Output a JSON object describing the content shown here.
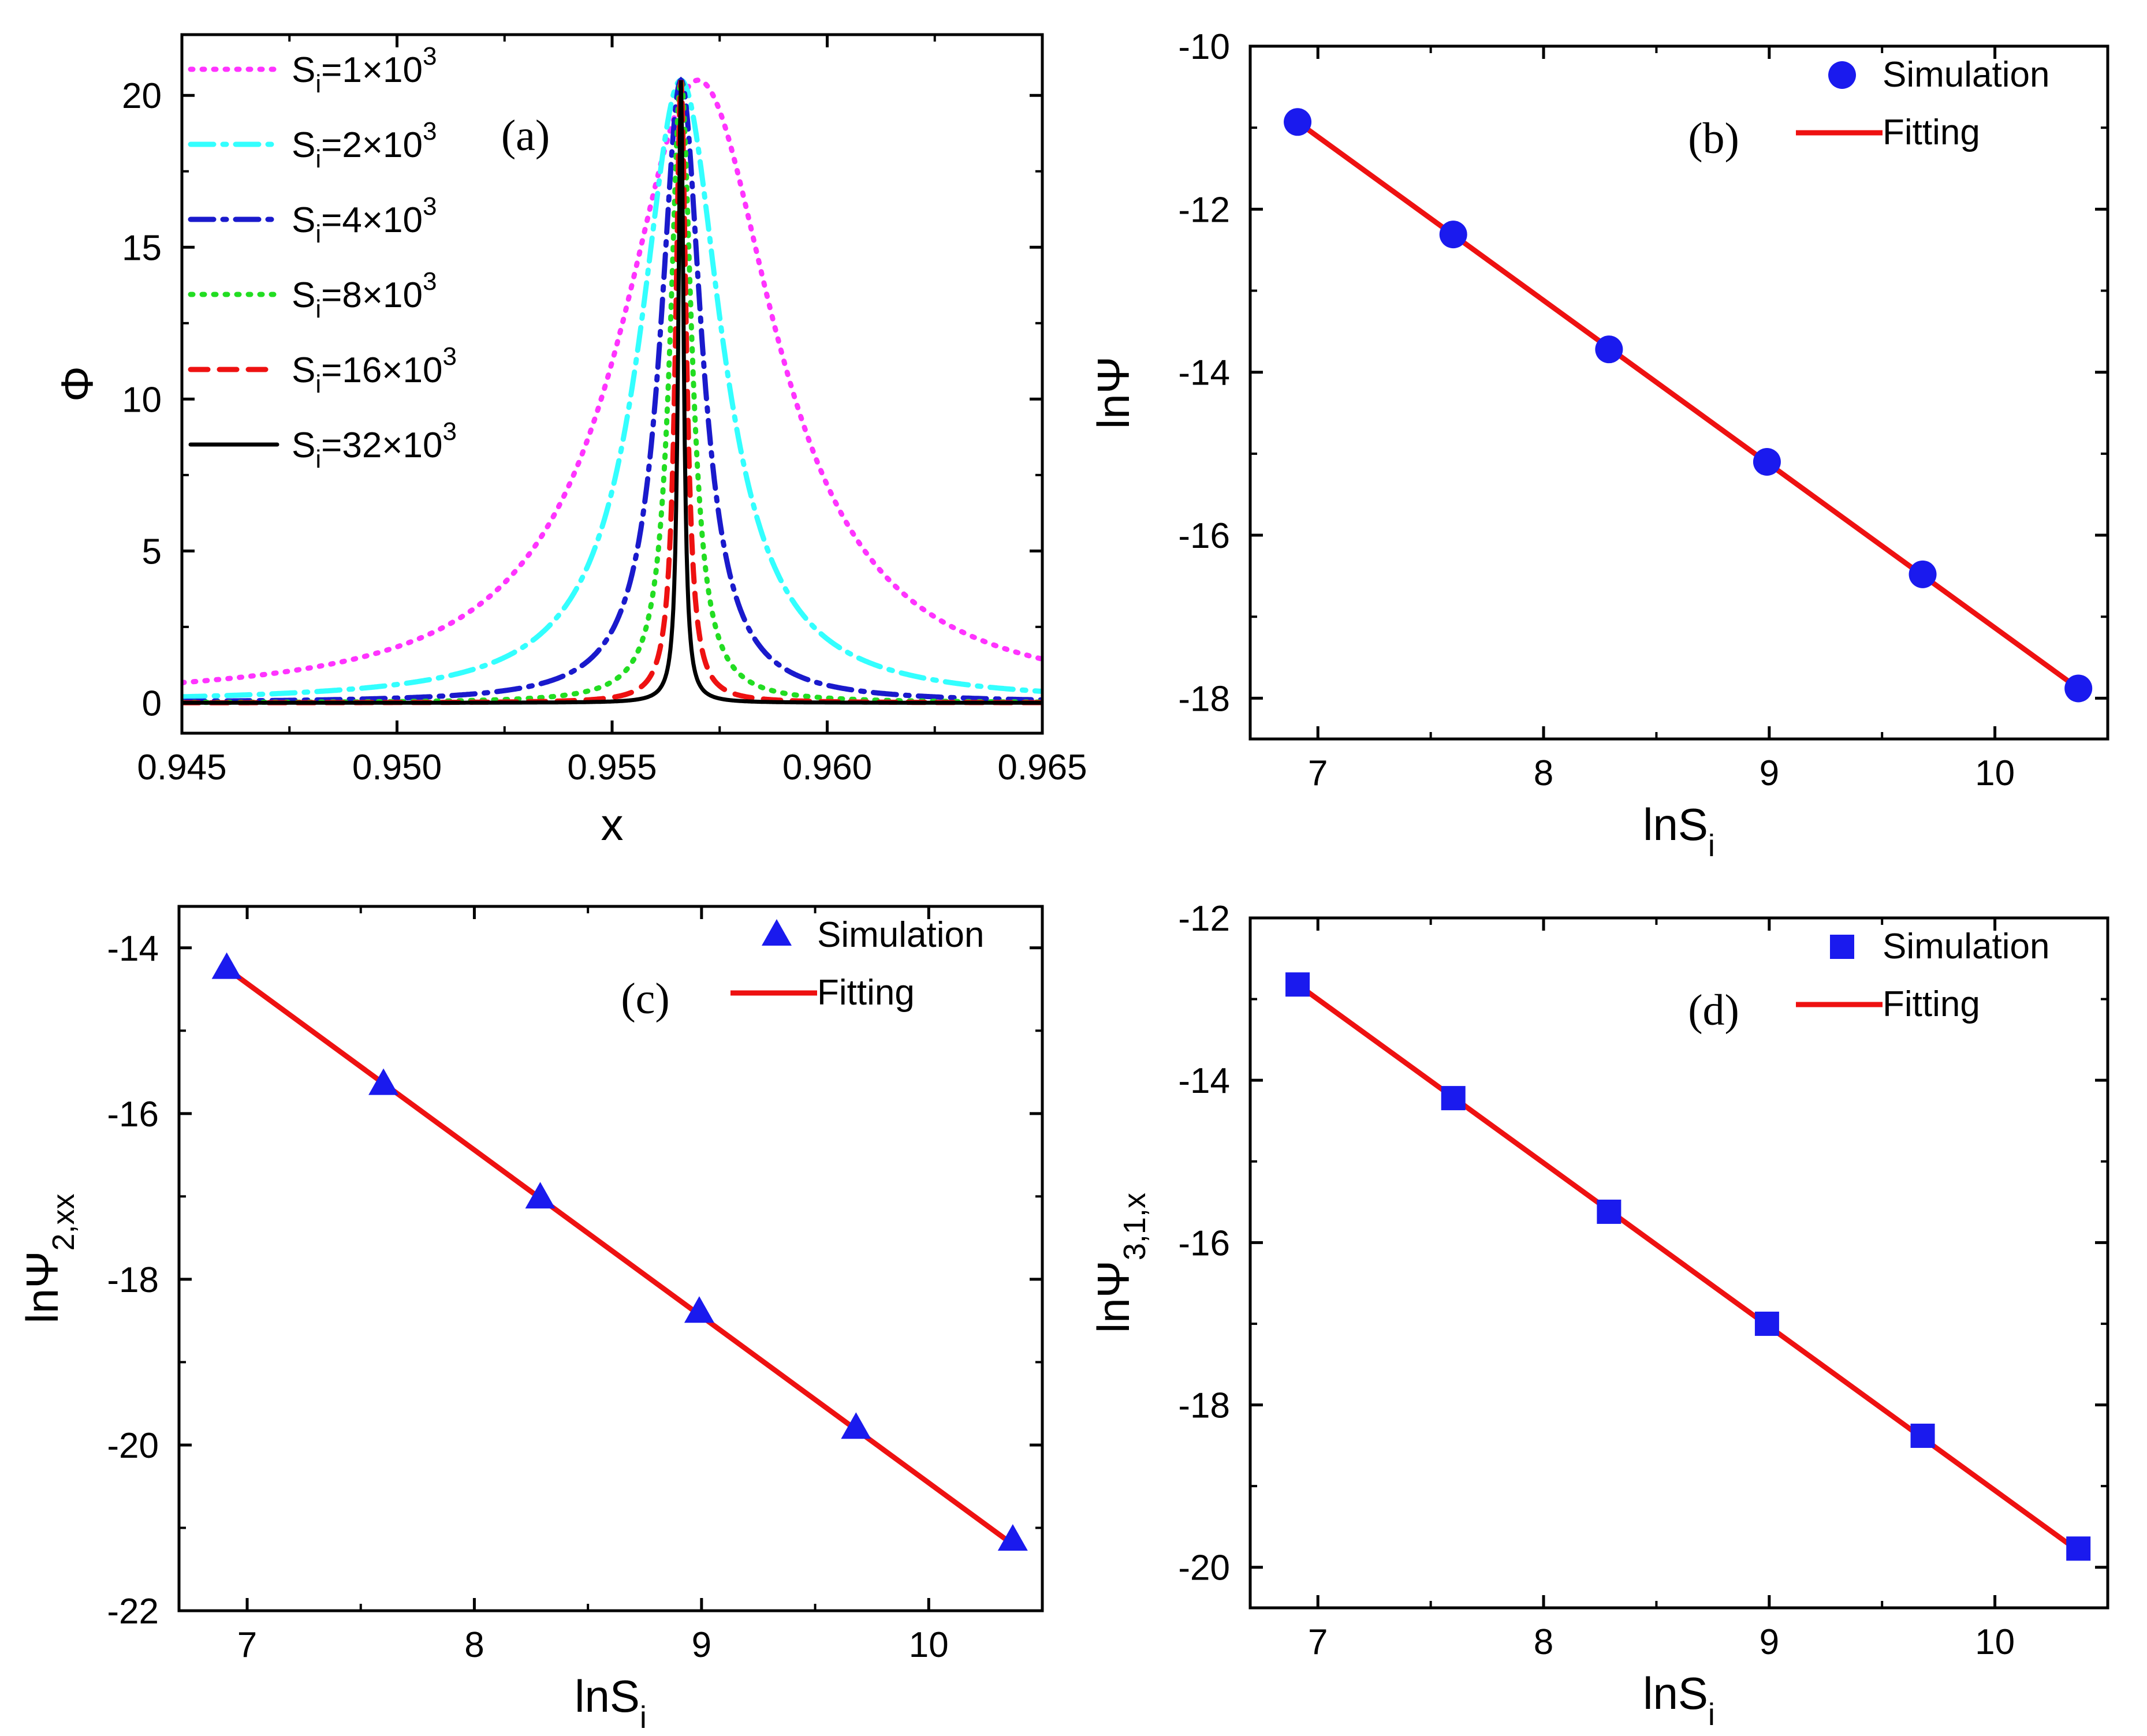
{
  "chart_data": [
    {
      "panel": "a",
      "type": "line",
      "tag": "(a)",
      "xlabel": "x",
      "ylabel": "Φ",
      "xlim": [
        0.945,
        0.965
      ],
      "ylim": [
        -1,
        22
      ],
      "xticks": [
        "0.945",
        "0.950",
        "0.955",
        "0.960",
        "0.965"
      ],
      "yticks": [
        "0",
        "5",
        "10",
        "15",
        "20"
      ],
      "legend_position": "top-left",
      "peak_x": 0.9566,
      "series": [
        {
          "name_main": "S",
          "name_sub": "i",
          "name_rest": "=1×10",
          "name_sup": "3",
          "color": "#ff33ff",
          "style": "dotted",
          "peak": 20.5,
          "width": 0.0022,
          "shift": 0.0004
        },
        {
          "name_main": "S",
          "name_sub": "i",
          "name_rest": "=2×10",
          "name_sup": "3",
          "color": "#33ffff",
          "style": "dash-dot",
          "peak": 20.5,
          "width": 0.00115,
          "shift": 0.0
        },
        {
          "name_main": "S",
          "name_sub": "i",
          "name_rest": "=4×10",
          "name_sup": "3",
          "color": "#1a1acc",
          "style": "dash-dot",
          "peak": 20.5,
          "width": 0.00058,
          "shift": 0.0
        },
        {
          "name_main": "S",
          "name_sub": "i",
          "name_rest": "=8×10",
          "name_sup": "3",
          "color": "#22dd22",
          "style": "dotted",
          "peak": 20.5,
          "width": 0.0003,
          "shift": 0.0
        },
        {
          "name_main": "S",
          "name_sub": "i",
          "name_rest": "=16×10",
          "name_sup": "3",
          "color": "#ee1111",
          "style": "dashed",
          "peak": 20.5,
          "width": 0.00015,
          "shift": 0.0
        },
        {
          "name_main": "S",
          "name_sub": "i",
          "name_rest": "=32×10",
          "name_sup": "3",
          "color": "#000000",
          "style": "solid",
          "peak": 20.5,
          "width": 7.5e-05,
          "shift": 0.0
        }
      ]
    },
    {
      "panel": "b",
      "type": "scatter",
      "tag": "(b)",
      "xlabel_main": "lnS",
      "xlabel_sub": "i",
      "ylabel_main": "lnΨ",
      "ylabel_sub": "",
      "xlim": [
        6.7,
        10.5
      ],
      "ylim": [
        -18.5,
        -10
      ],
      "xticks": [
        "7",
        "8",
        "9",
        "10"
      ],
      "yticks": [
        "-10",
        "-12",
        "-14",
        "-16",
        "-18"
      ],
      "marker": "circle",
      "legend_position": "top-right",
      "legend": [
        "Simulation",
        "Fitting"
      ],
      "x": [
        6.91,
        7.6,
        8.29,
        8.99,
        9.68,
        10.37
      ],
      "y": [
        -10.93,
        -12.31,
        -13.72,
        -15.1,
        -16.48,
        -17.88
      ],
      "fit": [
        [
          6.91,
          -10.93
        ],
        [
          10.37,
          -17.88
        ]
      ]
    },
    {
      "panel": "c",
      "type": "scatter",
      "tag": "(c)",
      "xlabel_main": "lnS",
      "xlabel_sub": "i",
      "ylabel_main": "lnΨ",
      "ylabel_sub": "2,xx",
      "xlim": [
        6.7,
        10.5
      ],
      "ylim": [
        -22,
        -13.5
      ],
      "xticks": [
        "7",
        "8",
        "9",
        "10"
      ],
      "yticks": [
        "-14",
        "-16",
        "-18",
        "-20",
        "-22"
      ],
      "marker": "triangle",
      "legend_position": "top-right",
      "legend": [
        "Simulation",
        "Fitting"
      ],
      "x": [
        6.91,
        7.6,
        8.29,
        8.99,
        9.68,
        10.37
      ],
      "y": [
        -14.25,
        -15.65,
        -17.02,
        -18.4,
        -19.8,
        -21.15
      ],
      "fit": [
        [
          6.91,
          -14.25
        ],
        [
          10.37,
          -21.2
        ]
      ]
    },
    {
      "panel": "d",
      "type": "scatter",
      "tag": "(d)",
      "xlabel_main": "lnS",
      "xlabel_sub": "i",
      "ylabel_main": "lnΨ",
      "ylabel_sub": "3,1,x",
      "xlim": [
        6.7,
        10.5
      ],
      "ylim": [
        -20.5,
        -12
      ],
      "xticks": [
        "7",
        "8",
        "9",
        "10"
      ],
      "yticks": [
        "-12",
        "-14",
        "-16",
        "-18",
        "-20"
      ],
      "marker": "square",
      "legend_position": "top-right",
      "legend": [
        "Simulation",
        "Fitting"
      ],
      "x": [
        6.91,
        7.6,
        8.29,
        8.99,
        9.68,
        10.37
      ],
      "y": [
        -12.82,
        -14.22,
        -15.62,
        -17.0,
        -18.38,
        -19.77
      ],
      "fit": [
        [
          6.91,
          -12.82
        ],
        [
          10.37,
          -19.8
        ]
      ]
    }
  ],
  "colors": {
    "marker": "#1a1aee",
    "fit": "#ee1111",
    "axis": "#000000"
  }
}
